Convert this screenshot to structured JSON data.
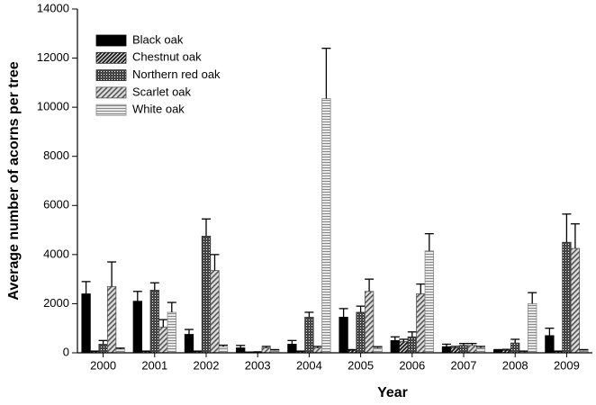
{
  "chart_data": {
    "type": "bar",
    "x_label": "Year",
    "y_label": "Average number of acorns per tree",
    "categories": [
      "2000",
      "2001",
      "2002",
      "2003",
      "2004",
      "2005",
      "2006",
      "2007",
      "2008",
      "2009"
    ],
    "ylim": [
      0,
      14000
    ],
    "yticks": [
      0,
      2000,
      4000,
      6000,
      8000,
      10000,
      12000,
      14000
    ],
    "legend": "top-left",
    "series": [
      {
        "name": "Black oak",
        "color": "#000000",
        "pattern": "solid",
        "values": [
          2400,
          2100,
          750,
          200,
          350,
          1450,
          500,
          250,
          100,
          700
        ],
        "errors": [
          500,
          400,
          200,
          100,
          150,
          350,
          150,
          100,
          30,
          300
        ]
      },
      {
        "name": "Chestnut oak",
        "color": "#222222",
        "pattern": "dense-diagonal",
        "values": [
          50,
          50,
          50,
          20,
          50,
          100,
          450,
          200,
          100,
          50
        ],
        "errors": [
          20,
          20,
          20,
          10,
          20,
          30,
          100,
          60,
          40,
          20
        ]
      },
      {
        "name": "Northern red oak",
        "color": "#333333",
        "pattern": "crosshatch",
        "values": [
          350,
          2550,
          4750,
          30,
          1450,
          1650,
          650,
          300,
          400,
          4500
        ],
        "errors": [
          150,
          300,
          700,
          10,
          200,
          250,
          200,
          80,
          150,
          1150
        ]
      },
      {
        "name": "Scarlet oak",
        "color": "#555555",
        "pattern": "diagonal",
        "values": [
          2700,
          1050,
          3350,
          200,
          200,
          2500,
          2400,
          300,
          50,
          4250
        ],
        "errors": [
          1000,
          300,
          650,
          60,
          60,
          500,
          400,
          80,
          20,
          1000
        ]
      },
      {
        "name": "White oak",
        "color": "#888888",
        "pattern": "horizontal",
        "values": [
          150,
          1650,
          250,
          100,
          10350,
          200,
          4150,
          200,
          2000,
          100
        ],
        "errors": [
          40,
          400,
          60,
          30,
          2050,
          50,
          700,
          60,
          450,
          30
        ]
      }
    ]
  }
}
